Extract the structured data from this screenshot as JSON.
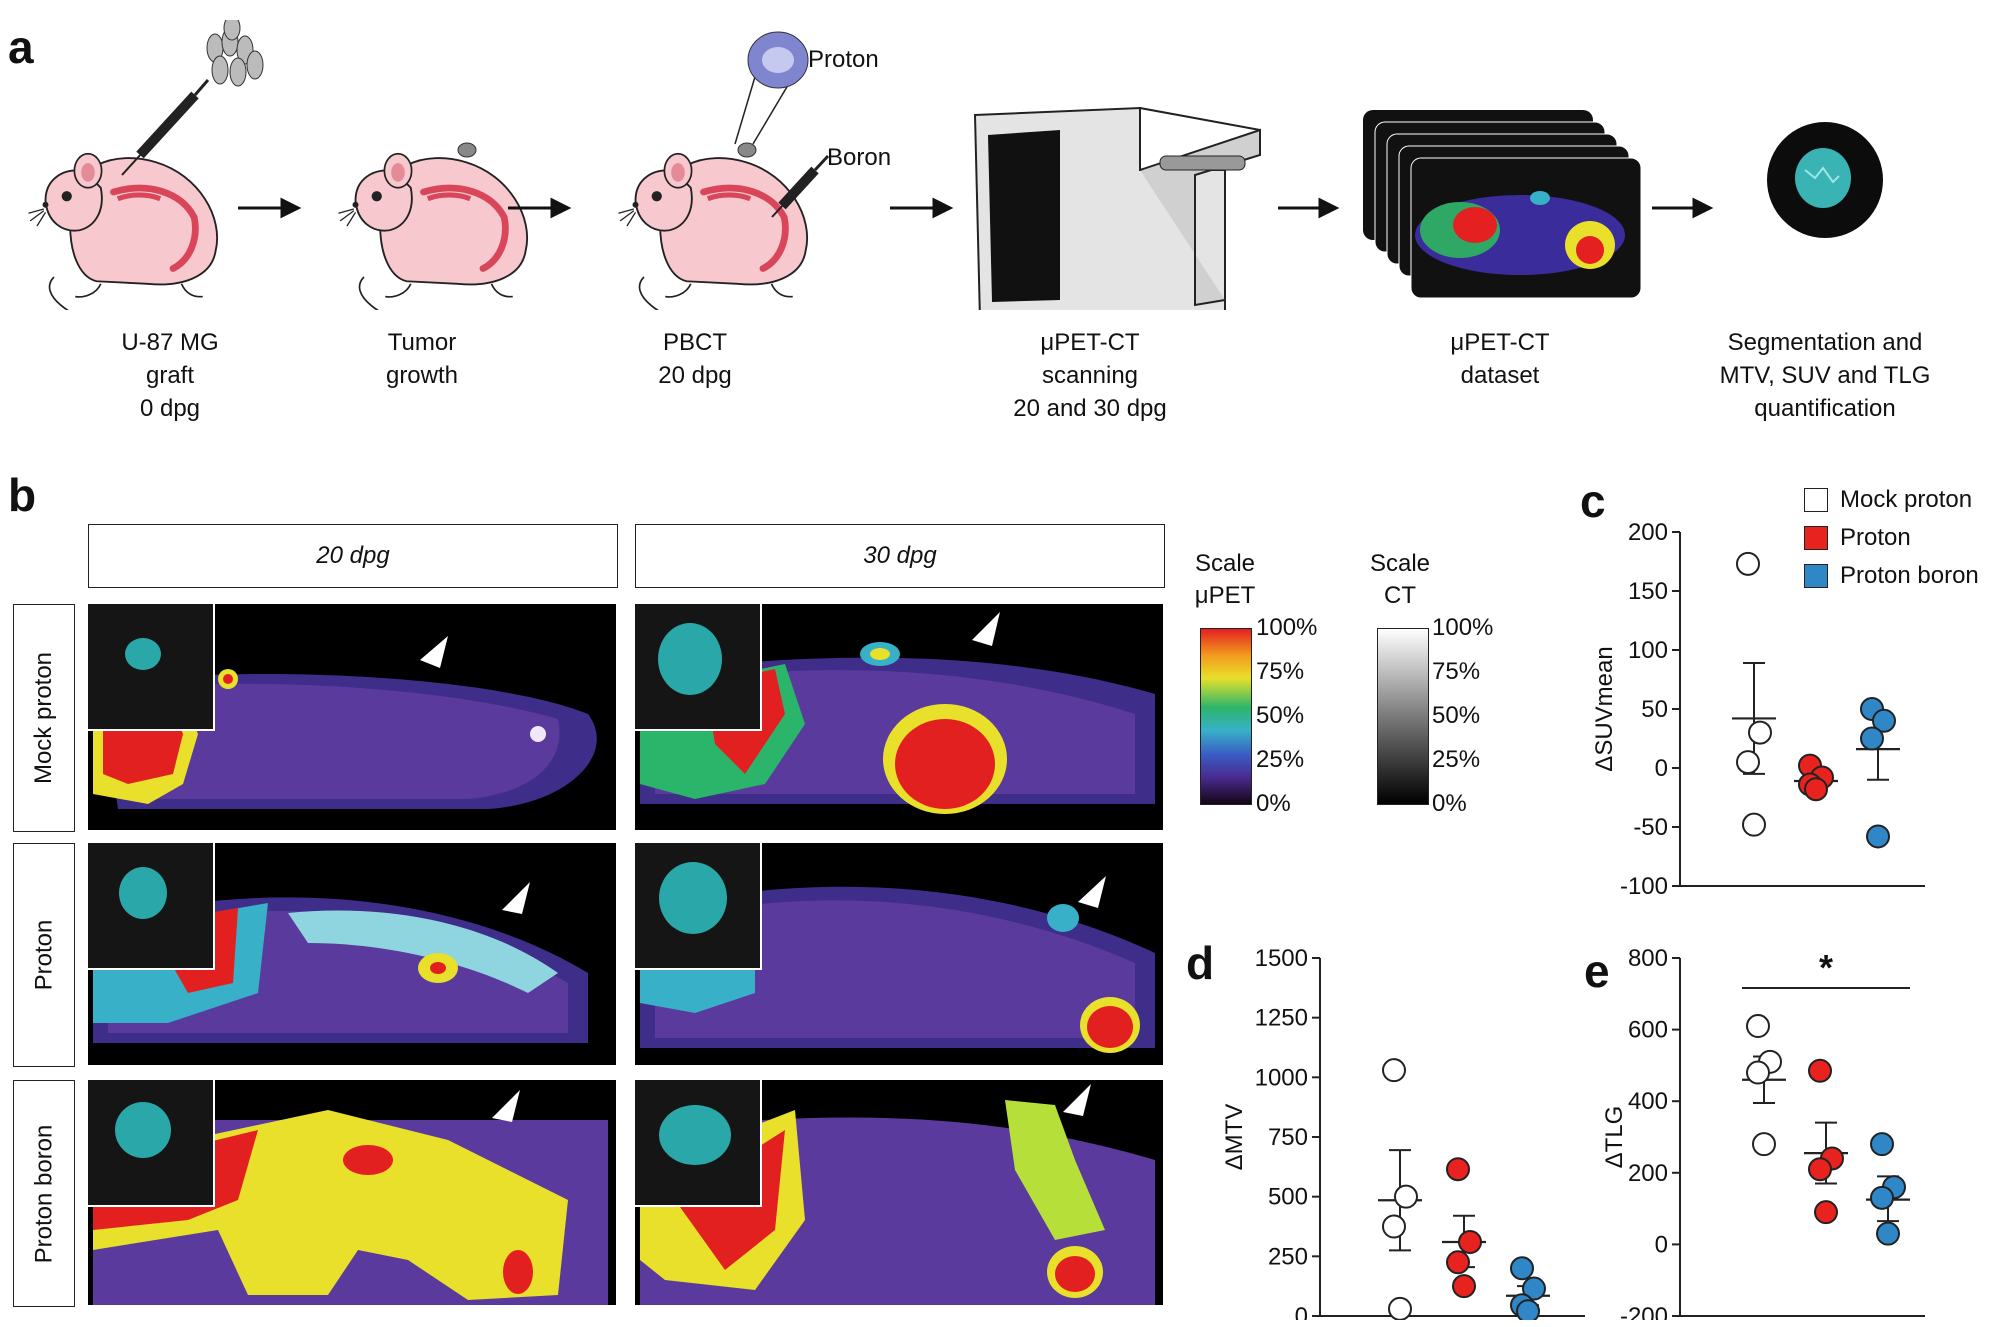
{
  "panels": {
    "a": "a",
    "b": "b",
    "c": "c",
    "d": "d",
    "e": "e"
  },
  "workflow": {
    "labels": {
      "proton": "Proton",
      "boron": "Boron"
    },
    "steps": [
      {
        "lines": [
          "U-87 MG",
          "graft",
          "0 dpg"
        ]
      },
      {
        "lines": [
          "Tumor",
          "growth"
        ]
      },
      {
        "lines": [
          "PBCT",
          "20 dpg"
        ]
      },
      {
        "lines": [
          "μPET-CT",
          "scanning",
          "20 and 30 dpg"
        ]
      },
      {
        "lines": [
          "μPET-CT",
          "dataset"
        ]
      },
      {
        "lines": [
          "Segmentation and",
          "MTV, SUV and TLG",
          "quantification"
        ]
      }
    ]
  },
  "imaging": {
    "columns": [
      "20 dpg",
      "30 dpg"
    ],
    "rows": [
      "Mock proton",
      "Proton",
      "Proton boron"
    ],
    "scale_pet": {
      "title": [
        "Scale",
        "μPET"
      ],
      "ticks": [
        "100%",
        "75%",
        "50%",
        "25%",
        "0%"
      ]
    },
    "scale_ct": {
      "title": [
        "Scale",
        "CT"
      ],
      "ticks": [
        "100%",
        "75%",
        "50%",
        "25%",
        "0%"
      ]
    }
  },
  "colors": {
    "mock": "#ffffff",
    "proton": "#e8231f",
    "proton_boron": "#2f87c7"
  },
  "chart_data": [
    {
      "type": "scatter",
      "panel": "c",
      "ylabel": "ΔSUVmean",
      "ylim": [
        -100,
        200
      ],
      "yticks": [
        200,
        150,
        100,
        50,
        0,
        -50,
        -100
      ],
      "legend": [
        "Mock proton",
        "Proton",
        "Proton boron"
      ],
      "series": [
        {
          "name": "Mock proton",
          "values": [
            173,
            30,
            5,
            -48
          ],
          "mean": 42,
          "sem_low": -5,
          "sem_high": 89
        },
        {
          "name": "Proton",
          "values": [
            2,
            -8,
            -14,
            -18
          ],
          "mean": -11,
          "sem_low": -15,
          "sem_high": -7
        },
        {
          "name": "Proton boron",
          "values": [
            50,
            40,
            25,
            -58
          ],
          "mean": 16,
          "sem_low": -10,
          "sem_high": 42
        }
      ]
    },
    {
      "type": "scatter",
      "panel": "d",
      "ylabel": "ΔMTV",
      "ylim": [
        0,
        1500
      ],
      "yticks": [
        1500,
        1250,
        1000,
        750,
        500,
        250,
        0
      ],
      "series": [
        {
          "name": "Mock proton",
          "values": [
            1030,
            500,
            375,
            30
          ],
          "mean": 485,
          "sem_low": 275,
          "sem_high": 695
        },
        {
          "name": "Proton",
          "values": [
            615,
            310,
            225,
            125
          ],
          "mean": 310,
          "sem_low": 205,
          "sem_high": 420
        },
        {
          "name": "Proton boron",
          "values": [
            200,
            115,
            45,
            20
          ],
          "mean": 85,
          "sem_low": 45,
          "sem_high": 125
        }
      ]
    },
    {
      "type": "scatter",
      "panel": "e",
      "ylabel": "ΔTLG",
      "ylim": [
        -200,
        800
      ],
      "yticks": [
        800,
        600,
        400,
        200,
        0,
        -200
      ],
      "significance": "*",
      "series": [
        {
          "name": "Mock proton",
          "values": [
            610,
            510,
            480,
            280
          ],
          "mean": 460,
          "sem_low": 395,
          "sem_high": 525
        },
        {
          "name": "Proton",
          "values": [
            485,
            240,
            210,
            90
          ],
          "mean": 255,
          "sem_low": 170,
          "sem_high": 340
        },
        {
          "name": "Proton boron",
          "values": [
            280,
            160,
            130,
            30
          ],
          "mean": 125,
          "sem_low": 65,
          "sem_high": 190
        }
      ]
    }
  ]
}
